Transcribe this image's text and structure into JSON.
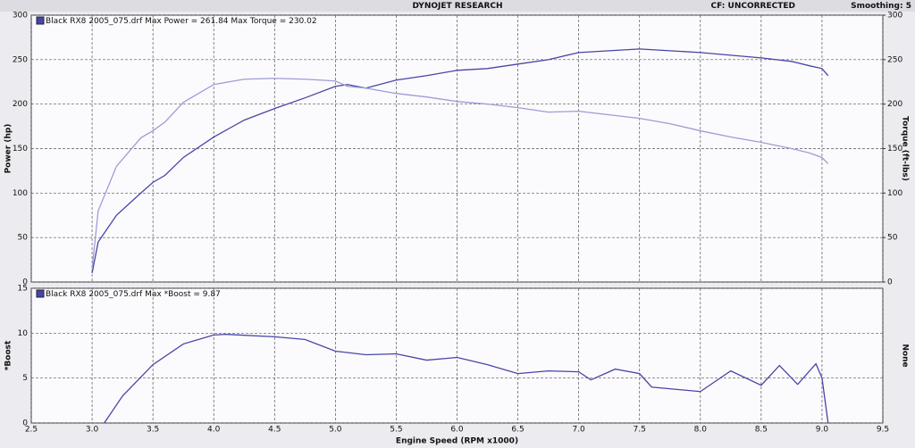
{
  "header": {
    "title": "DYNOJET RESEARCH",
    "cf": "CF: UNCORRECTED",
    "smoothing": "Smoothing: 5"
  },
  "chart_data": [
    {
      "type": "line",
      "legend": "Black RX8 2005_075.drf Max Power = 261.84 Max Torque = 230.02",
      "y_label": "Power (hp)",
      "y2_label": "Torque (ft-lbs)",
      "x": [
        3.0,
        3.05,
        3.2,
        3.4,
        3.5,
        3.6,
        3.75,
        4.0,
        4.25,
        4.5,
        4.75,
        5.0,
        5.1,
        5.25,
        5.5,
        5.75,
        6.0,
        6.25,
        6.5,
        6.75,
        7.0,
        7.25,
        7.5,
        7.75,
        8.0,
        8.25,
        8.5,
        8.75,
        8.9,
        9.0,
        9.05
      ],
      "series": [
        {
          "color": "#4845a6",
          "values": [
            10,
            45,
            75,
            100,
            112,
            120,
            140,
            163,
            182,
            195,
            207,
            220,
            222,
            218,
            227,
            232,
            238,
            240,
            245,
            250,
            258,
            260,
            262,
            260,
            258,
            255,
            252,
            248,
            243,
            240,
            232
          ]
        },
        {
          "color": "#9d9cd8",
          "axis": "y2",
          "values": [
            15,
            80,
            130,
            162,
            170,
            180,
            202,
            222,
            228,
            229,
            228,
            226,
            220,
            218,
            212,
            208,
            203,
            200,
            196,
            191,
            192,
            188,
            184,
            178,
            170,
            163,
            157,
            150,
            145,
            140,
            133
          ]
        }
      ],
      "xlim": [
        2.5,
        9.5
      ],
      "xticks": [
        2.5,
        3,
        3.5,
        4,
        4.5,
        5,
        5.5,
        6,
        6.5,
        7,
        7.5,
        8,
        8.5,
        9,
        9.5
      ],
      "ylim": [
        0,
        300
      ],
      "yticks": [
        0,
        50,
        100,
        150,
        200,
        250,
        300
      ],
      "y2lim": [
        0,
        300
      ],
      "y2ticks": [
        0,
        50,
        100,
        150,
        200,
        250,
        300
      ],
      "grid": true
    },
    {
      "type": "line",
      "legend": "Black RX8 2005_075.drf Max *Boost = 9.87",
      "y_label": "*Boost",
      "y2_label": "None",
      "x_label": "Engine Speed (RPM x1000)",
      "x": [
        3.1,
        3.25,
        3.5,
        3.75,
        4.0,
        4.1,
        4.5,
        4.75,
        5.0,
        5.25,
        5.5,
        5.75,
        6.0,
        6.25,
        6.5,
        6.75,
        7.0,
        7.1,
        7.3,
        7.5,
        7.6,
        8.0,
        8.25,
        8.5,
        8.65,
        8.8,
        8.95,
        9.0,
        9.05
      ],
      "series": [
        {
          "color": "#4845a6",
          "values": [
            0,
            3,
            6.5,
            8.8,
            9.8,
            9.87,
            9.6,
            9.3,
            8,
            7.6,
            7.7,
            7,
            7.3,
            6.5,
            5.5,
            5.8,
            5.7,
            4.8,
            6,
            5.5,
            4,
            3.5,
            5.8,
            4.2,
            6.4,
            4.3,
            6.6,
            5,
            0
          ]
        }
      ],
      "xlim": [
        2.5,
        9.5
      ],
      "xticks": [
        2.5,
        {
          "value": 3,
          "label": "3.0"
        },
        3.5,
        {
          "value": 4,
          "label": "4.0"
        },
        4.5,
        {
          "value": 5,
          "label": "5.0"
        },
        5.5,
        {
          "value": 6,
          "label": "6.0"
        },
        6.5,
        {
          "value": 7,
          "label": "7.0"
        },
        7.5,
        {
          "value": 8,
          "label": "8.0"
        },
        8.5,
        {
          "value": 9,
          "label": "9.0"
        },
        9.5
      ],
      "ylim": [
        0,
        15
      ],
      "yticks": [
        0,
        5,
        10,
        15
      ],
      "grid": true
    }
  ]
}
